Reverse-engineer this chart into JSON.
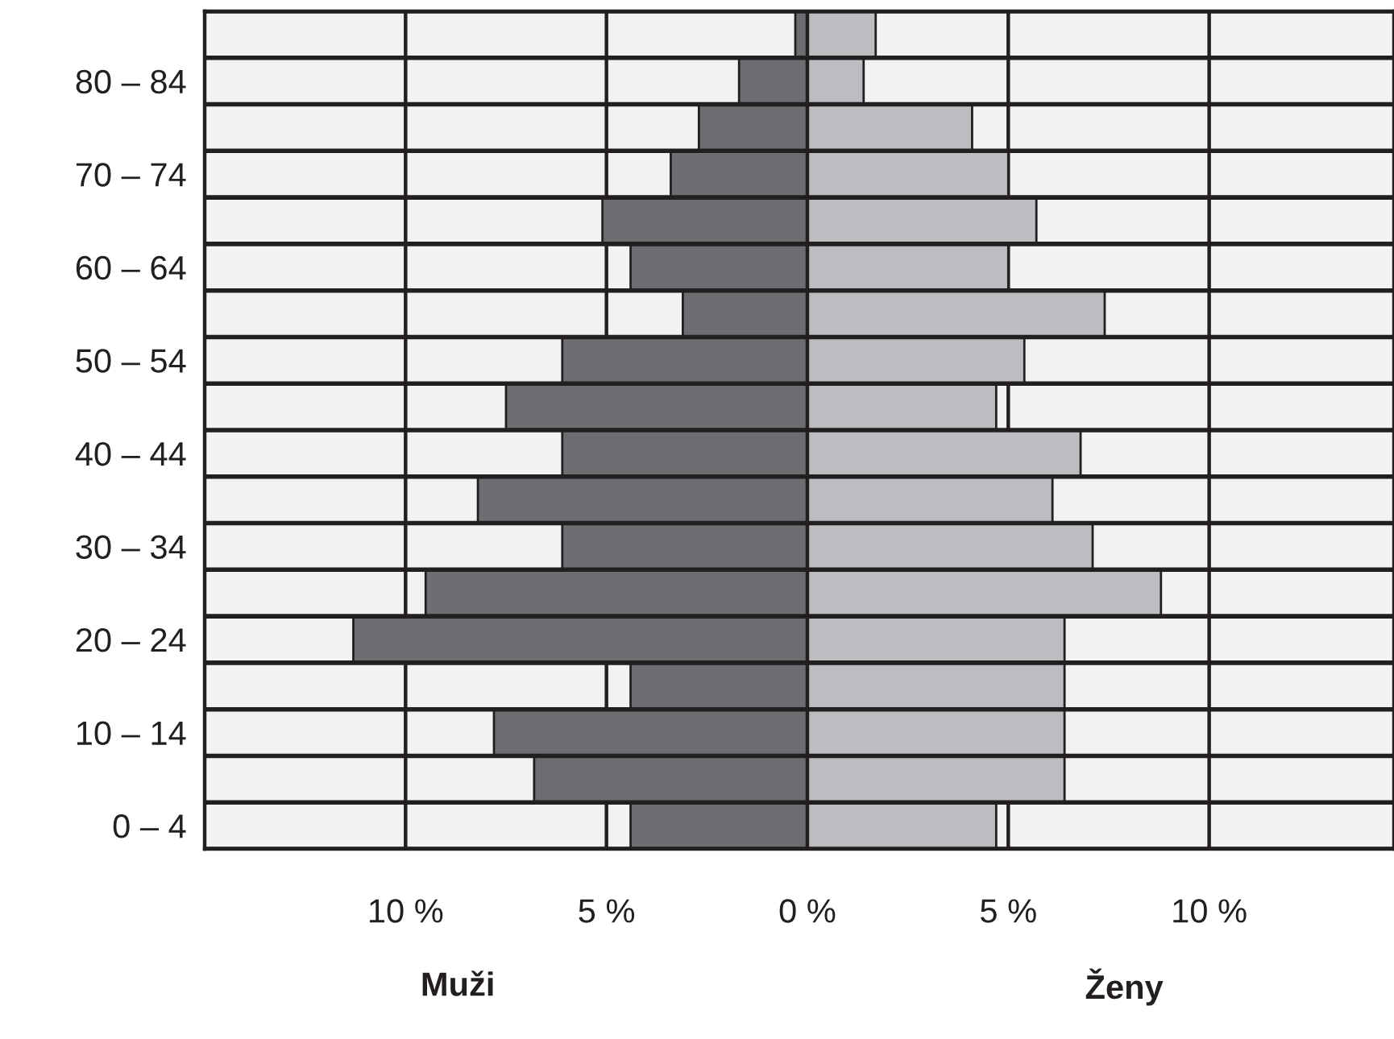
{
  "chart_data": {
    "type": "bar",
    "orientation": "horizontal",
    "stacked": true,
    "categories": [
      null,
      "80 – 84",
      null,
      "70 – 74",
      null,
      "60 – 64",
      null,
      "50 – 54",
      null,
      "40 – 44",
      null,
      "30 – 34",
      null,
      "20 – 24",
      null,
      "10 – 14",
      null,
      "0 – 4"
    ],
    "series": [
      {
        "color": "#6d6e71",
        "values": [
          -0.3,
          -1.7,
          -2.7,
          -3.4,
          -5.1,
          -4.4,
          -3.1,
          -6.1,
          -7.5,
          -6.1,
          -8.2,
          -6.1,
          -9.5,
          -11.3,
          -4.4,
          -7.8,
          -6.8,
          -4.4
        ]
      },
      {
        "color": "#bcbdc0",
        "values": [
          1.7,
          1.4,
          4.1,
          5.0,
          5.7,
          5.0,
          7.4,
          5.4,
          4.7,
          6.8,
          6.1,
          7.1,
          8.8,
          6.4,
          6.4,
          6.4,
          6.4,
          4.7
        ]
      }
    ],
    "xlim": [
      -15,
      14.6
    ],
    "xticks": [
      {
        "value": -10,
        "label": "10 %"
      },
      {
        "value": -5,
        "label": "5 %"
      },
      {
        "value": 0,
        "label": "0 %"
      },
      {
        "value": 5,
        "label": "5 %"
      },
      {
        "value": 10,
        "label": "10 %"
      }
    ],
    "annotations": [
      "Muži",
      "Ženy"
    ],
    "grid": "x",
    "legend": false
  }
}
